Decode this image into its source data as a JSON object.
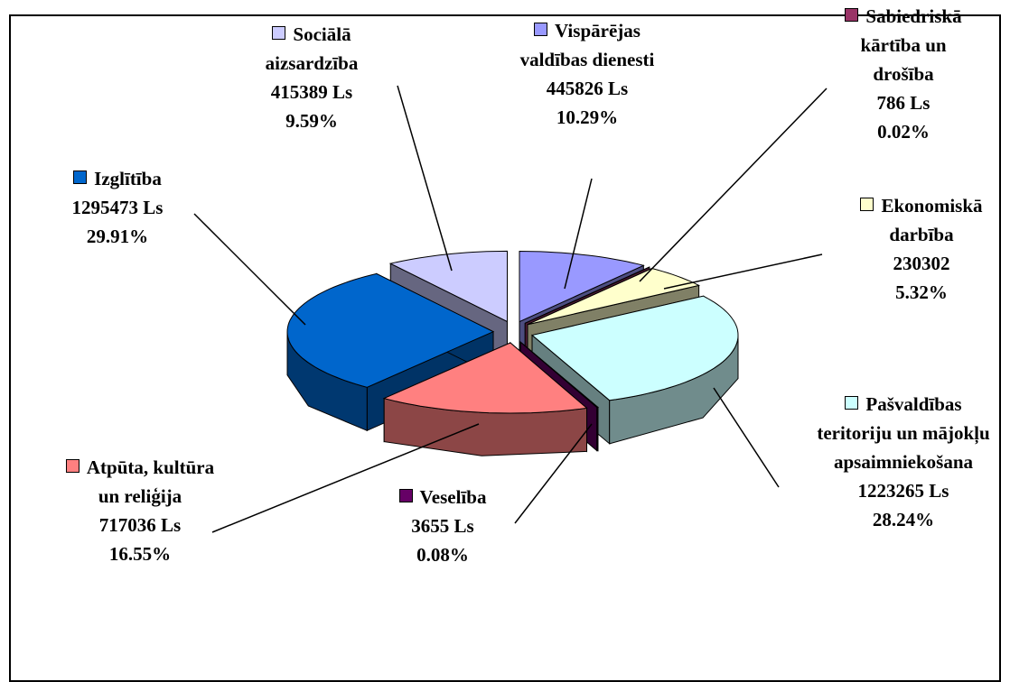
{
  "chart_data": {
    "type": "pie3d",
    "categories": [
      "Vispārējas valdības dienesti",
      "Sabiedriskā kārtība un drošība",
      "Ekonomiskā darbība",
      "Pašvaldības teritoriju un mājokļu apsaimniekošana",
      "Veselība",
      "Atpūta, kultūra un reliģija",
      "Izglītība",
      "Sociālā aizsardzība"
    ],
    "values": [
      445826,
      786,
      230302,
      1223265,
      3655,
      717036,
      1295473,
      415389
    ],
    "value_labels": [
      "445826 Ls",
      "786 Ls",
      "230302",
      "1223265 Ls",
      "3655 Ls",
      "717036 Ls",
      "1295473 Ls",
      "415389 Ls"
    ],
    "percents": [
      10.29,
      0.02,
      5.32,
      28.24,
      0.08,
      16.55,
      29.91,
      9.59
    ],
    "percent_labels": [
      "10.29%",
      "0.02%",
      "5.32%",
      "28.24%",
      "0.08%",
      "16.55%",
      "29.91%",
      "9.59%"
    ],
    "colors": [
      "#9999ff",
      "#993366",
      "#ffffcc",
      "#ccffff",
      "#660066",
      "#ff8080",
      "#0066cc",
      "#ccccff"
    ]
  }
}
